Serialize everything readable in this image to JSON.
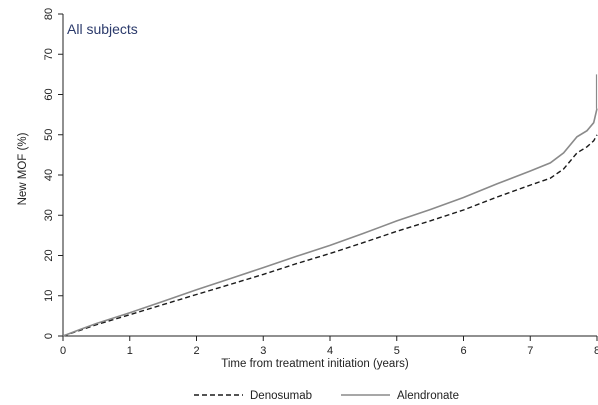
{
  "chart_data": {
    "type": "line",
    "panel_label": "All subjects",
    "xlabel": "Time from treatment initiation (years)",
    "ylabel": "New MOF (%)",
    "xlim": [
      0,
      8
    ],
    "ylim": [
      0,
      80
    ],
    "x_ticks": [
      0,
      1,
      2,
      3,
      4,
      5,
      6,
      7,
      8
    ],
    "y_ticks": [
      0,
      10,
      20,
      30,
      40,
      50,
      60,
      70,
      80
    ],
    "grid": false,
    "legend_position": "bottom",
    "series": [
      {
        "name": "Denosumab",
        "style": "dashed",
        "color": "#1a1a1a",
        "x": [
          0,
          0.25,
          0.5,
          1,
          1.5,
          2,
          2.5,
          3,
          3.5,
          4,
          4.5,
          5,
          5.5,
          6,
          6.5,
          7,
          7.3,
          7.5,
          7.7,
          7.85,
          7.95,
          8.0
        ],
        "y": [
          0,
          1.4,
          2.8,
          5.3,
          7.8,
          10.3,
          12.8,
          15.3,
          18.0,
          20.5,
          23.2,
          26.0,
          28.6,
          31.3,
          34.5,
          37.5,
          39.2,
          41.5,
          45.5,
          47.0,
          48.5,
          50.0
        ]
      },
      {
        "name": "Alendronate",
        "style": "solid",
        "color": "#8a8a8a",
        "x": [
          0,
          0.25,
          0.5,
          1,
          1.5,
          2,
          2.5,
          3,
          3.5,
          4,
          4.5,
          5,
          5.5,
          6,
          6.5,
          7,
          7.3,
          7.5,
          7.7,
          7.85,
          7.95,
          8.0
        ],
        "y": [
          0,
          1.6,
          3.1,
          5.8,
          8.6,
          11.5,
          14.2,
          17.0,
          19.8,
          22.5,
          25.5,
          28.6,
          31.4,
          34.4,
          37.8,
          41.0,
          43.0,
          45.5,
          49.5,
          51.0,
          53.0,
          56.5
        ]
      }
    ]
  }
}
